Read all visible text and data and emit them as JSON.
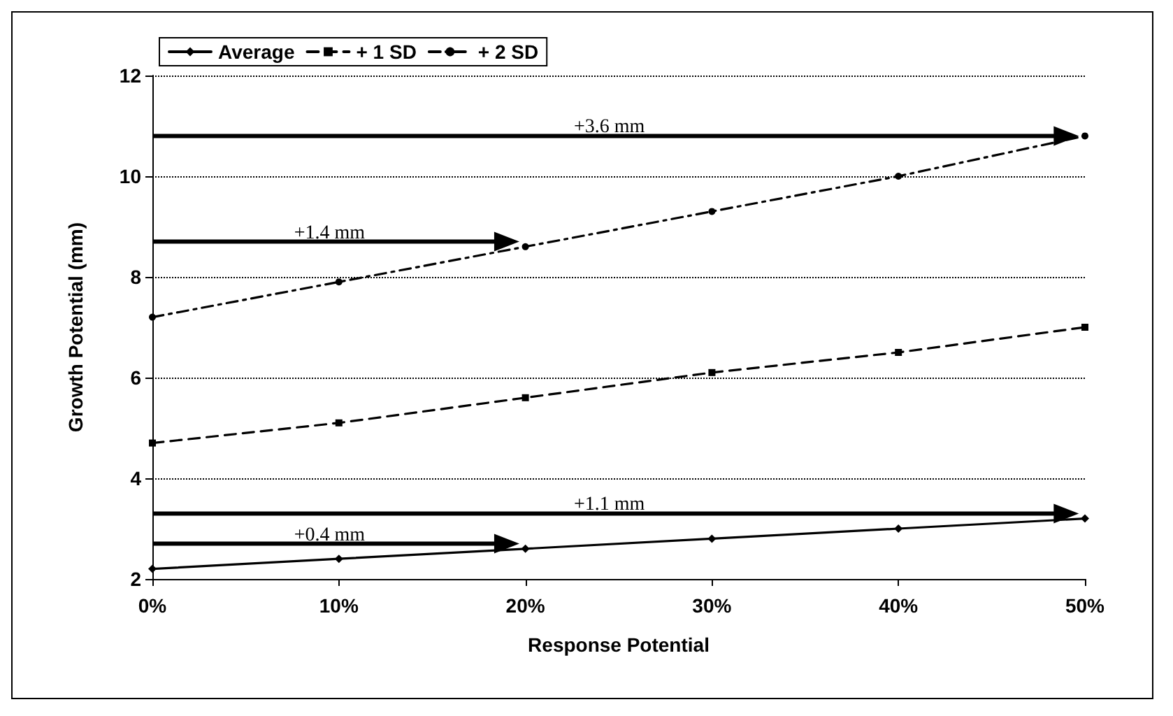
{
  "chart_data": {
    "type": "line",
    "xlabel": "Response Potential",
    "ylabel": "Growth Potential (mm)",
    "x": [
      0,
      10,
      20,
      30,
      40,
      50
    ],
    "xlim": [
      0,
      50
    ],
    "xticks": [
      {
        "value": 0,
        "label": "0%"
      },
      {
        "value": 10,
        "label": "10%"
      },
      {
        "value": 20,
        "label": "20%"
      },
      {
        "value": 30,
        "label": "30%"
      },
      {
        "value": 40,
        "label": "40%"
      },
      {
        "value": 50,
        "label": "50%"
      }
    ],
    "ylim": [
      2,
      12
    ],
    "yticks": [
      2,
      4,
      6,
      8,
      10,
      12
    ],
    "grid": "y",
    "legend": "top left",
    "series": [
      {
        "name": "Average",
        "color": "#000000",
        "marker": "diamond",
        "line_style": "solid",
        "values": [
          2.2,
          2.4,
          2.6,
          2.8,
          3.0,
          3.2
        ]
      },
      {
        "name": "+ 1 SD",
        "color": "#000000",
        "marker": "square",
        "line_style": "dashed",
        "values": [
          4.7,
          5.1,
          5.6,
          6.1,
          6.5,
          7.0
        ]
      },
      {
        "name": "+ 2 SD",
        "color": "#000000",
        "marker": "circle",
        "line_style": "dashdot",
        "values": [
          7.2,
          7.9,
          8.6,
          9.3,
          10.0,
          10.8
        ]
      },
      {
        "name": "+3.6 mm",
        "color": "#000000",
        "marker": "triangle",
        "line_style": "solid",
        "x": [
          0,
          49
        ],
        "values": [
          10.8,
          10.8
        ]
      },
      {
        "name": "+1.4 mm",
        "color": "#000000",
        "marker": "triangle",
        "line_style": "solid",
        "x": [
          0,
          19
        ],
        "values": [
          8.7,
          8.7
        ]
      },
      {
        "name": "+1.1 mm",
        "color": "#000000",
        "marker": "triangle",
        "line_style": "solid",
        "x": [
          0,
          49
        ],
        "values": [
          3.3,
          3.3
        ]
      },
      {
        "name": "+0.4 mm",
        "color": "#000000",
        "marker": "triangle",
        "line_style": "solid",
        "x": [
          0,
          19
        ],
        "values": [
          2.7,
          2.7
        ]
      }
    ]
  }
}
